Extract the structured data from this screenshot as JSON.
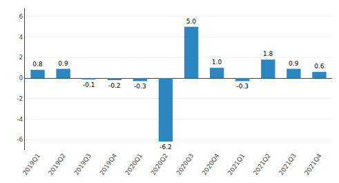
{
  "chart_data": {
    "type": "bar",
    "categories": [
      "2019Q1",
      "2019Q2",
      "2019Q3",
      "2019Q4",
      "2020Q1",
      "2020Q2",
      "2020Q3",
      "2020Q4",
      "2021Q1",
      "2021Q2",
      "2021Q3",
      "2021Q4"
    ],
    "values": [
      0.8,
      0.9,
      -0.1,
      -0.2,
      -0.3,
      -6.2,
      5.0,
      1.0,
      -0.3,
      1.8,
      0.9,
      0.6
    ],
    "value_labels": [
      "0.8",
      "0.9",
      "-0.1",
      "-0.2",
      "-0.3",
      "-6.2",
      "5.0",
      "1.0",
      "-0.3",
      "1.8",
      "0.9",
      "0.6"
    ],
    "color": "#2e86c1",
    "ylim": [
      -7,
      6.8
    ],
    "yticks": [
      -6,
      -4,
      -2,
      0,
      2,
      4,
      6
    ],
    "grid": true,
    "data_labels": true
  }
}
